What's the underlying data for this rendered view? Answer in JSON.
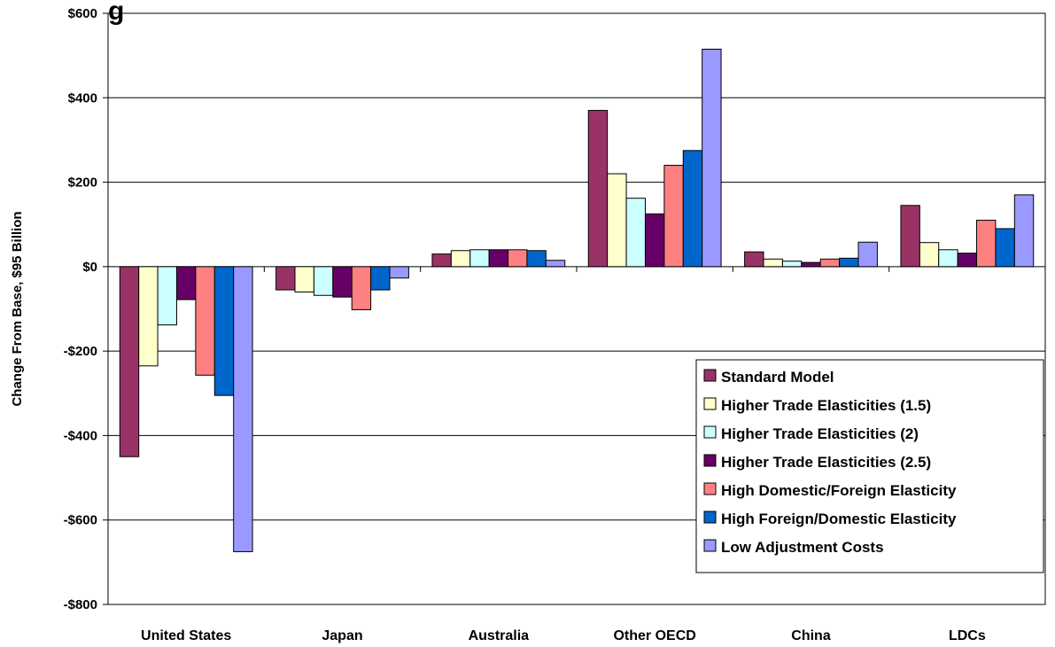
{
  "chart_data": {
    "type": "bar",
    "title_fragment": "g",
    "ylabel": "Change From Base, $95 Billion",
    "xlabel": "",
    "categories": [
      "United States",
      "Japan",
      "Australia",
      "Other OECD",
      "China",
      "LDCs"
    ],
    "ylim": [
      -800,
      600
    ],
    "yticks": [
      600,
      400,
      200,
      0,
      -200,
      -400,
      -600,
      -800
    ],
    "ytick_labels": [
      "$600",
      "$400",
      "$200",
      "$0",
      "-$200",
      "-$400",
      "-$600",
      "-$800"
    ],
    "grid": true,
    "legend_position": "bottom-right",
    "series": [
      {
        "name": "Standard Model",
        "color": "#993366",
        "values": [
          -450,
          -55,
          30,
          370,
          35,
          145
        ]
      },
      {
        "name": "Higher Trade Elasticities (1.5)",
        "color": "#FFFFCC",
        "values": [
          -235,
          -60,
          38,
          220,
          18,
          57
        ]
      },
      {
        "name": "Higher Trade Elasticities (2)",
        "color": "#CCFFFF",
        "values": [
          -138,
          -68,
          40,
          162,
          13,
          40
        ]
      },
      {
        "name": "Higher Trade Elasticities (2.5)",
        "color": "#660066",
        "values": [
          -78,
          -72,
          40,
          125,
          10,
          32
        ]
      },
      {
        "name": "High Domestic/Foreign Elasticity",
        "color": "#FF8080",
        "values": [
          -257,
          -102,
          40,
          240,
          18,
          110
        ]
      },
      {
        "name": "High Foreign/Domestic Elasticity",
        "color": "#0066CC",
        "values": [
          -305,
          -55,
          38,
          275,
          20,
          90
        ]
      },
      {
        "name": "Low Adjustment Costs",
        "color": "#9999FF",
        "values": [
          -675,
          -27,
          15,
          515,
          58,
          170
        ]
      }
    ]
  }
}
